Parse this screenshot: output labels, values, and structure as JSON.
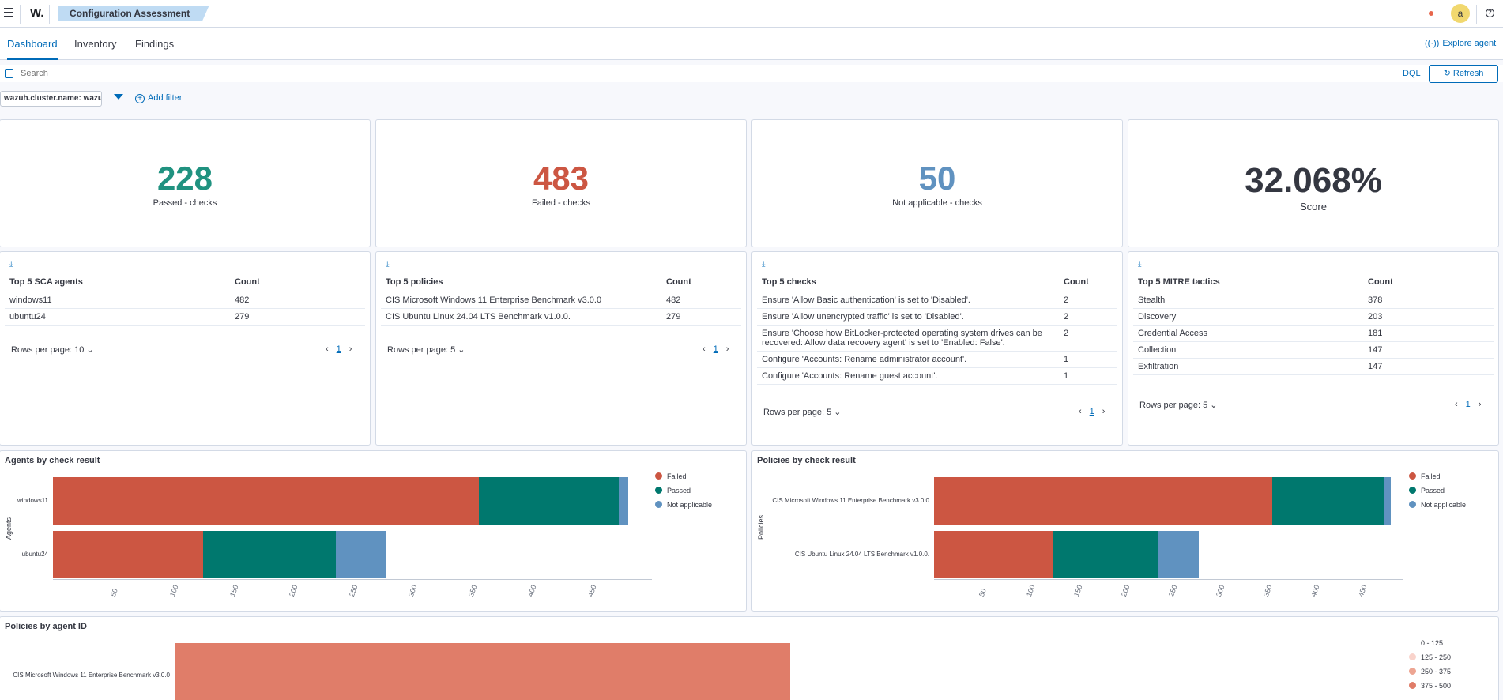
{
  "header": {
    "logo": "W.",
    "breadcrumb": "Configuration Assessment",
    "avatar": "a"
  },
  "tabs": [
    {
      "label": "Dashboard",
      "active": true
    },
    {
      "label": "Inventory",
      "active": false
    },
    {
      "label": "Findings",
      "active": false
    }
  ],
  "explore_agent": "Explore agent",
  "search": {
    "placeholder": "Search",
    "dql": "DQL",
    "refresh": "Refresh"
  },
  "filters": {
    "pill": "wazuh.cluster.name: wazuh",
    "add": "Add filter"
  },
  "metrics": [
    {
      "value": "228",
      "label": "Passed - checks",
      "color": "#209280"
    },
    {
      "value": "483",
      "label": "Failed - checks",
      "color": "#cc5642"
    },
    {
      "value": "50",
      "label": "Not applicable - checks",
      "color": "#6092c0"
    },
    {
      "value": "32.068%",
      "label": "Score",
      "color": "#343741"
    }
  ],
  "tables": [
    {
      "headers": [
        "Top 5 SCA agents",
        "Count"
      ],
      "rows": [
        [
          "windows11",
          "482"
        ],
        [
          "ubuntu24",
          "279"
        ]
      ],
      "rows_per_page": "Rows per page: 10",
      "page": "1"
    },
    {
      "headers": [
        "Top 5 policies",
        "Count"
      ],
      "rows": [
        [
          "CIS Microsoft Windows 11 Enterprise Benchmark v3.0.0",
          "482"
        ],
        [
          "CIS Ubuntu Linux 24.04 LTS Benchmark v1.0.0.",
          "279"
        ]
      ],
      "rows_per_page": "Rows per page: 5",
      "page": "1"
    },
    {
      "headers": [
        "Top 5 checks",
        "Count"
      ],
      "rows": [
        [
          "Ensure 'Allow Basic authentication' is set to 'Disabled'.",
          "2"
        ],
        [
          "Ensure 'Allow unencrypted traffic' is set to 'Disabled'.",
          "2"
        ],
        [
          "Ensure 'Choose how BitLocker-protected operating system drives can be recovered: Allow data recovery agent' is set to 'Enabled: False'.",
          "2"
        ],
        [
          "Configure 'Accounts: Rename administrator account'.",
          "1"
        ],
        [
          "Configure 'Accounts: Rename guest account'.",
          "1"
        ]
      ],
      "rows_per_page": "Rows per page: 5",
      "page": "1"
    },
    {
      "headers": [
        "Top 5 MITRE tactics",
        "Count"
      ],
      "rows": [
        [
          "Stealth",
          "378"
        ],
        [
          "Discovery",
          "203"
        ],
        [
          "Credential Access",
          "181"
        ],
        [
          "Collection",
          "147"
        ],
        [
          "Exfiltration",
          "147"
        ]
      ],
      "rows_per_page": "Rows per page: 5",
      "page": "1"
    }
  ],
  "chart_data": [
    {
      "type": "bar",
      "orientation": "horizontal",
      "stacked": true,
      "title": "Agents by check result",
      "ylabel": "Agents",
      "categories": [
        "windows11",
        "ubuntu24"
      ],
      "series": [
        {
          "name": "Failed",
          "color": "#cc5642",
          "values": [
            357,
            126
          ]
        },
        {
          "name": "Passed",
          "color": "#00786e",
          "values": [
            117,
            111
          ]
        },
        {
          "name": "Not applicable",
          "color": "#6092c0",
          "values": [
            8,
            42
          ]
        }
      ],
      "xticks": [
        "50",
        "100",
        "150",
        "200",
        "250",
        "300",
        "350",
        "400",
        "450"
      ],
      "xlim": [
        0,
        500
      ],
      "legend": "right"
    },
    {
      "type": "bar",
      "orientation": "horizontal",
      "stacked": true,
      "title": "Policies by check result",
      "ylabel": "Policies",
      "categories": [
        "CIS Microsoft Windows 11 Enterprise Benchmark v3.0.0",
        "CIS Ubuntu Linux 24.04 LTS Benchmark v1.0.0."
      ],
      "series": [
        {
          "name": "Failed",
          "color": "#cc5642",
          "values": [
            357,
            126
          ]
        },
        {
          "name": "Passed",
          "color": "#00786e",
          "values": [
            117,
            111
          ]
        },
        {
          "name": "Not applicable",
          "color": "#6092c0",
          "values": [
            8,
            42
          ]
        }
      ],
      "xticks": [
        "50",
        "100",
        "150",
        "200",
        "250",
        "300",
        "350",
        "400",
        "450"
      ],
      "xlim": [
        0,
        500
      ],
      "legend": "right"
    },
    {
      "type": "heatmap",
      "title": "Policies by agent ID",
      "categories": [
        "CIS Microsoft Windows 11 Enterprise Benchmark v3.0.0"
      ],
      "values": [
        482
      ],
      "legend": [
        {
          "range": "0 - 125",
          "color": "#ffffff"
        },
        {
          "range": "125 - 250",
          "color": "#f9d3cb"
        },
        {
          "range": "250 - 375",
          "color": "#eda592"
        },
        {
          "range": "375 - 500",
          "color": "#e07d69"
        }
      ]
    }
  ]
}
